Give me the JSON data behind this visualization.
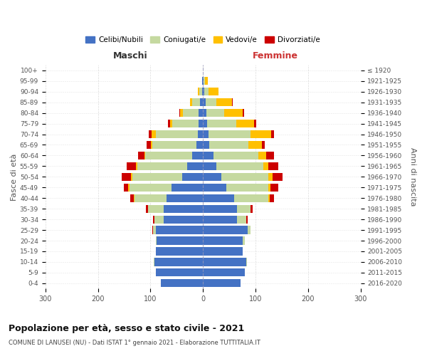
{
  "age_groups": [
    "0-4",
    "5-9",
    "10-14",
    "15-19",
    "20-24",
    "25-29",
    "30-34",
    "35-39",
    "40-44",
    "45-49",
    "50-54",
    "55-59",
    "60-64",
    "65-69",
    "70-74",
    "75-79",
    "80-84",
    "85-89",
    "90-94",
    "95-99",
    "100+"
  ],
  "birth_years": [
    "2016-2020",
    "2011-2015",
    "2006-2010",
    "2001-2005",
    "1996-2000",
    "1991-1995",
    "1986-1990",
    "1981-1985",
    "1976-1980",
    "1971-1975",
    "1966-1970",
    "1961-1965",
    "1956-1960",
    "1951-1955",
    "1946-1950",
    "1941-1945",
    "1936-1940",
    "1931-1935",
    "1926-1930",
    "1921-1925",
    "≤ 1920"
  ],
  "males": {
    "celibi": [
      80,
      90,
      92,
      90,
      88,
      90,
      75,
      75,
      70,
      60,
      40,
      30,
      20,
      12,
      10,
      8,
      8,
      5,
      2,
      1,
      0
    ],
    "coniugati": [
      0,
      0,
      2,
      0,
      2,
      5,
      18,
      30,
      60,
      80,
      95,
      95,
      90,
      85,
      80,
      50,
      30,
      15,
      5,
      0,
      0
    ],
    "vedovi": [
      0,
      0,
      0,
      0,
      0,
      0,
      0,
      0,
      1,
      2,
      2,
      2,
      2,
      2,
      8,
      5,
      5,
      5,
      3,
      1,
      0
    ],
    "divorziati": [
      0,
      0,
      0,
      0,
      0,
      2,
      2,
      3,
      8,
      8,
      18,
      18,
      12,
      8,
      5,
      3,
      2,
      0,
      0,
      0,
      0
    ]
  },
  "females": {
    "nubili": [
      72,
      80,
      82,
      75,
      75,
      85,
      65,
      65,
      60,
      45,
      35,
      25,
      20,
      12,
      10,
      8,
      6,
      5,
      2,
      1,
      0
    ],
    "coniugate": [
      0,
      0,
      2,
      0,
      5,
      5,
      18,
      25,
      65,
      80,
      90,
      90,
      85,
      75,
      80,
      55,
      35,
      20,
      8,
      3,
      0
    ],
    "vedove": [
      0,
      0,
      0,
      0,
      0,
      0,
      0,
      1,
      2,
      3,
      8,
      10,
      15,
      25,
      40,
      35,
      35,
      30,
      20,
      5,
      0
    ],
    "divorziate": [
      0,
      0,
      0,
      0,
      0,
      1,
      2,
      3,
      8,
      15,
      18,
      18,
      15,
      5,
      5,
      3,
      3,
      2,
      0,
      0,
      0
    ]
  },
  "colors": {
    "celibi": "#4472c4",
    "coniugati": "#c5d9a0",
    "vedovi": "#ffc000",
    "divorziati": "#cc0000"
  },
  "xlim": 300,
  "title": "Popolazione per età, sesso e stato civile - 2021",
  "subtitle": "COMUNE DI LANUSEI (NU) - Dati ISTAT 1° gennaio 2021 - Elaborazione TUTTITALIA.IT",
  "ylabel_left": "Fasce di età",
  "ylabel_right": "Anni di nascita",
  "xlabel_maschi": "Maschi",
  "xlabel_femmine": "Femmine",
  "legend_labels": [
    "Celibi/Nubili",
    "Coniugati/e",
    "Vedovi/e",
    "Divorziati/e"
  ],
  "bg_color": "#ffffff",
  "grid_color": "#cccccc",
  "bar_height": 0.75
}
